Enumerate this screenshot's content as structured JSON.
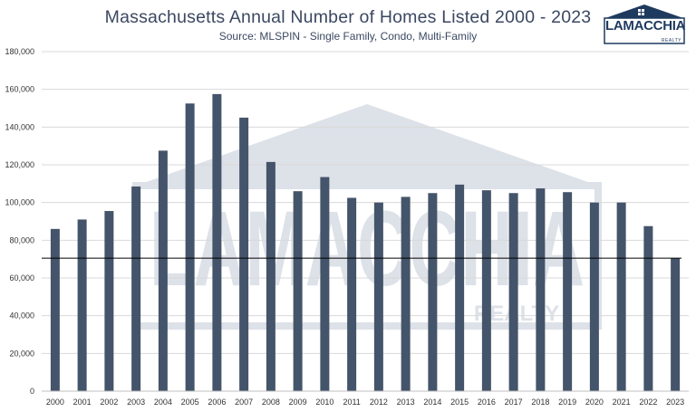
{
  "header": {
    "title": "Massachusetts Annual Number of Homes Listed 2000 - 2023",
    "subtitle": "Source: MLSPIN - Single Family, Condo, Multi-Family"
  },
  "logo": {
    "wordmark": "LAMACCHIA",
    "subtext": "REALTY"
  },
  "watermark": {
    "word": "LAMACCHIA",
    "sub": "REALTY"
  },
  "colors": {
    "bar": "#44546a",
    "grid": "#d9d9d9",
    "refline": "#000000",
    "title": "#3b4861",
    "watermark": "#dde1e8"
  },
  "chart_data": {
    "type": "bar",
    "title": "Massachusetts Annual Number of Homes Listed 2000 - 2023",
    "subtitle": "Source: MLSPIN - Single Family, Condo, Multi-Family",
    "categories": [
      "2000",
      "2001",
      "2002",
      "2003",
      "2004",
      "2005",
      "2006",
      "2007",
      "2008",
      "2009",
      "2010",
      "2011",
      "2012",
      "2013",
      "2014",
      "2015",
      "2016",
      "2017",
      "2018",
      "2019",
      "2020",
      "2021",
      "2022",
      "2023"
    ],
    "values": [
      86000,
      91000,
      95500,
      108500,
      127500,
      152500,
      157500,
      145000,
      121500,
      106000,
      113500,
      102500,
      100000,
      103000,
      105000,
      109500,
      106500,
      105000,
      107500,
      105500,
      100000,
      100000,
      87500,
      70500
    ],
    "y_ticks": [
      "0",
      "20,000",
      "40,000",
      "60,000",
      "80,000",
      "100,000",
      "120,000",
      "140,000",
      "160,000",
      "180,000"
    ],
    "ylim": [
      0,
      180000
    ],
    "reference_line": 70500,
    "grid": true,
    "legend": "none",
    "xlabel": "",
    "ylabel": ""
  }
}
